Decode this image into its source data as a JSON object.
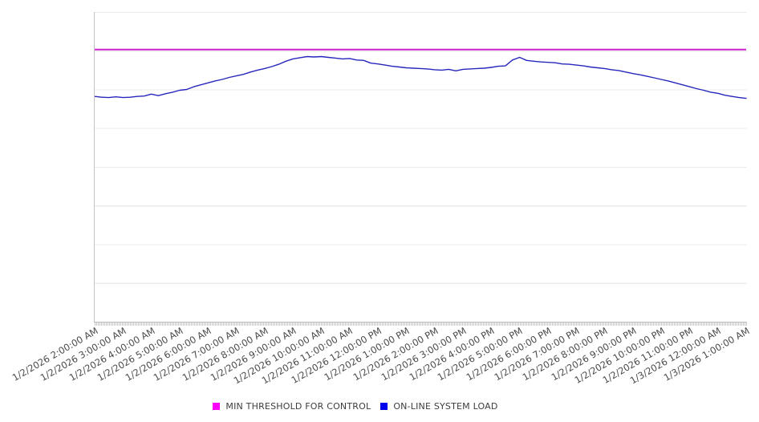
{
  "chart_data": {
    "type": "line",
    "title": "",
    "xlabel": "",
    "ylabel": "",
    "x_axis": {
      "start": "1/2/2026 2:00:00 AM",
      "end": "1/3/2026 1:00:00 AM",
      "hours_span": 23,
      "label_rotation_deg": -30,
      "tick_labels": [
        "1/2/2026 2:00:00 AM",
        "1/2/2026 3:00:00 AM",
        "1/2/2026 4:00:00 AM",
        "1/2/2026 5:00:00 AM",
        "1/2/2026 6:00:00 AM",
        "1/2/2026 7:00:00 AM",
        "1/2/2026 8:00:00 AM",
        "1/2/2026 9:00:00 AM",
        "1/2/2026 10:00:00 AM",
        "1/2/2026 11:00:00 AM",
        "1/2/2026 12:00:00 PM",
        "1/2/2026 1:00:00 PM",
        "1/2/2026 2:00:00 PM",
        "1/2/2026 3:00:00 PM",
        "1/2/2026 4:00:00 PM",
        "1/2/2026 5:00:00 PM",
        "1/2/2026 6:00:00 PM",
        "1/2/2026 7:00:00 PM",
        "1/2/2026 8:00:00 PM",
        "1/2/2026 9:00:00 PM",
        "1/2/2026 10:00:00 PM",
        "1/2/2026 11:00:00 PM",
        "1/3/2026 12:00:00 AM",
        "1/3/2026 1:00:00 AM"
      ]
    },
    "y_axis": {
      "tick_labels_shown": false,
      "ylim": [
        0,
        8
      ],
      "gridline_interval": 1
    },
    "grid": "horizontal",
    "legend_position": "bottom-center",
    "series": [
      {
        "name": "MIN THRESHOLD FOR CONTROL",
        "type": "horizontal-threshold",
        "value": 7.03,
        "line_color": "#cf24cf",
        "legend_swatch_color": "#ff00ff"
      },
      {
        "name": "ON-LINE SYSTEM LOAD",
        "type": "line",
        "x_start_hour": 0,
        "x_step_hours": 0.25,
        "line_color": "#2727bd",
        "legend_swatch_color": "#0000ee",
        "values": [
          5.82,
          5.8,
          5.79,
          5.81,
          5.79,
          5.8,
          5.82,
          5.83,
          5.88,
          5.84,
          5.89,
          5.93,
          5.98,
          6.0,
          6.07,
          6.12,
          6.17,
          6.22,
          6.26,
          6.31,
          6.35,
          6.39,
          6.45,
          6.5,
          6.54,
          6.59,
          6.65,
          6.73,
          6.79,
          6.82,
          6.85,
          6.84,
          6.85,
          6.83,
          6.81,
          6.79,
          6.8,
          6.76,
          6.75,
          6.68,
          6.66,
          6.63,
          6.6,
          6.58,
          6.56,
          6.55,
          6.54,
          6.53,
          6.51,
          6.5,
          6.52,
          6.48,
          6.52,
          6.53,
          6.54,
          6.55,
          6.57,
          6.6,
          6.61,
          6.76,
          6.83,
          6.75,
          6.73,
          6.71,
          6.7,
          6.69,
          6.66,
          6.65,
          6.63,
          6.61,
          6.58,
          6.56,
          6.54,
          6.51,
          6.49,
          6.45,
          6.41,
          6.38,
          6.34,
          6.3,
          6.26,
          6.22,
          6.17,
          6.12,
          6.07,
          6.02,
          5.98,
          5.93,
          5.9,
          5.85,
          5.82,
          5.79,
          5.77
        ]
      }
    ],
    "colors": {
      "background": "#ffffff",
      "axis_line": "#c3c3c3",
      "gridline": "#ebebeb",
      "tick_label_text": "#4a4a4a",
      "legend_text": "#3d3d3d"
    }
  }
}
